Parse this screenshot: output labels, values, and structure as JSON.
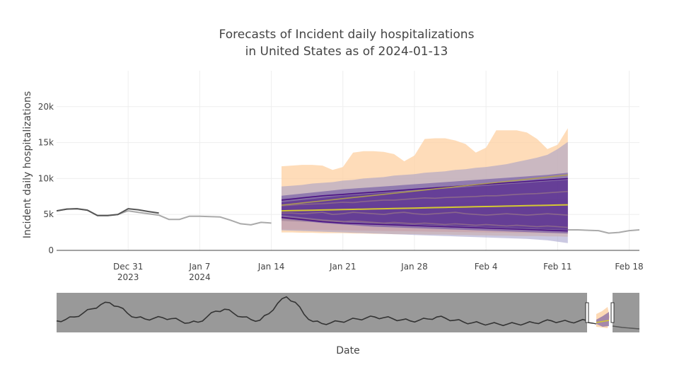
{
  "chart_data": {
    "type": "line",
    "title_line1": "Forecasts of Incident daily hospitalizations",
    "title_line2": "in United States as of 2024-01-13",
    "xlabel": "Date",
    "ylabel": "Incident daily hospitalizations",
    "xlim": [
      "2023-12-24",
      "2024-02-19"
    ],
    "ylim": [
      0,
      25000
    ],
    "grid": true,
    "legend": "none",
    "x_ticks": [
      {
        "date": "2023-12-31",
        "line1": "Dec 31",
        "line2": "2023"
      },
      {
        "date": "2024-01-07",
        "line1": "Jan 7",
        "line2": "2024"
      },
      {
        "date": "2024-01-14",
        "line1": "Jan 14",
        "line2": ""
      },
      {
        "date": "2024-01-21",
        "line1": "Jan 21",
        "line2": ""
      },
      {
        "date": "2024-01-28",
        "line1": "Jan 28",
        "line2": ""
      },
      {
        "date": "2024-02-04",
        "line1": "Feb 4",
        "line2": ""
      },
      {
        "date": "2024-02-11",
        "line1": "Feb 11",
        "line2": ""
      },
      {
        "date": "2024-02-18",
        "line1": "Feb 18",
        "line2": ""
      }
    ],
    "y_ticks": [
      {
        "value": 0,
        "label": "0"
      },
      {
        "value": 5000,
        "label": "5k"
      },
      {
        "value": 10000,
        "label": "10k"
      },
      {
        "value": 15000,
        "label": "15k"
      },
      {
        "value": 20000,
        "label": "20k"
      }
    ],
    "observed_as_of": {
      "color": "#555555",
      "points": [
        [
          "2023-12-24",
          5500
        ],
        [
          "2023-12-25",
          5750
        ],
        [
          "2023-12-26",
          5800
        ],
        [
          "2023-12-27",
          5600
        ],
        [
          "2023-12-28",
          4850
        ],
        [
          "2023-12-29",
          4850
        ],
        [
          "2023-12-30",
          5000
        ],
        [
          "2023-12-31",
          5800
        ],
        [
          "2024-01-01",
          5650
        ],
        [
          "2024-01-02",
          5400
        ],
        [
          "2024-01-03",
          5200
        ]
      ]
    },
    "observed_latest": {
      "color": "#aaaaaa",
      "points": [
        [
          "2023-12-24",
          5500
        ],
        [
          "2023-12-25",
          5750
        ],
        [
          "2023-12-26",
          5800
        ],
        [
          "2023-12-27",
          5600
        ],
        [
          "2023-12-28",
          4850
        ],
        [
          "2023-12-29",
          4850
        ],
        [
          "2023-12-30",
          5000
        ],
        [
          "2023-12-31",
          5500
        ],
        [
          "2024-01-01",
          5300
        ],
        [
          "2024-01-02",
          5100
        ],
        [
          "2024-01-03",
          4900
        ],
        [
          "2024-01-04",
          4300
        ],
        [
          "2024-01-05",
          4300
        ],
        [
          "2024-01-06",
          4750
        ],
        [
          "2024-01-07",
          4750
        ],
        [
          "2024-01-08",
          4700
        ],
        [
          "2024-01-09",
          4650
        ],
        [
          "2024-01-10",
          4200
        ],
        [
          "2024-01-11",
          3700
        ],
        [
          "2024-01-12",
          3550
        ],
        [
          "2024-01-13",
          3900
        ],
        [
          "2024-01-14",
          3800
        ],
        [
          "2024-02-11",
          3300
        ],
        [
          "2024-02-12",
          2850
        ],
        [
          "2024-02-13",
          2850
        ],
        [
          "2024-02-14",
          2800
        ],
        [
          "2024-02-15",
          2750
        ],
        [
          "2024-02-16",
          2400
        ],
        [
          "2024-02-17",
          2500
        ],
        [
          "2024-02-18",
          2750
        ],
        [
          "2024-02-19",
          2850
        ]
      ]
    },
    "forecast_dates": [
      "2024-01-15",
      "2024-01-16",
      "2024-01-17",
      "2024-01-18",
      "2024-01-19",
      "2024-01-20",
      "2024-01-21",
      "2024-01-22",
      "2024-01-23",
      "2024-01-24",
      "2024-01-25",
      "2024-01-26",
      "2024-01-27",
      "2024-01-28",
      "2024-01-29",
      "2024-01-30",
      "2024-01-31",
      "2024-02-01",
      "2024-02-02",
      "2024-02-03",
      "2024-02-04",
      "2024-02-05",
      "2024-02-06",
      "2024-02-07",
      "2024-02-08",
      "2024-02-09",
      "2024-02-10",
      "2024-02-11",
      "2024-02-12"
    ],
    "bands": [
      {
        "color": "#fdd0a2",
        "opacity": 0.75,
        "upper": [
          11700,
          11800,
          11900,
          11900,
          11800,
          11200,
          11600,
          13600,
          13800,
          13800,
          13700,
          13400,
          12400,
          13200,
          15500,
          15600,
          15600,
          15300,
          14800,
          13600,
          14300,
          16700,
          16700,
          16700,
          16400,
          15500,
          14100,
          14700,
          17000
        ],
        "lower": [
          2500,
          2500,
          2450,
          2450,
          2400,
          2400,
          2400,
          2350,
          2350,
          2300,
          2300,
          2250,
          2250,
          2250,
          2200,
          2200,
          2200,
          2150,
          2150,
          2100,
          2100,
          2050,
          2050,
          2000,
          2000,
          2000,
          1950,
          1950,
          1900
        ]
      },
      {
        "color": "#fc9272",
        "opacity": 0.45,
        "upper": [
          5800,
          5850,
          5900,
          5950,
          6000,
          6050,
          6100,
          6150,
          6200,
          6250,
          6300,
          6350,
          6400,
          6450,
          6500,
          6550,
          6600,
          6650,
          6700,
          6750,
          6800,
          6850,
          6900,
          6950,
          7000,
          7050,
          7100,
          7150,
          7200
        ],
        "lower": [
          2900,
          2880,
          2860,
          2840,
          2820,
          2800,
          2780,
          2760,
          2740,
          2720,
          2700,
          2680,
          2660,
          2640,
          2620,
          2600,
          2580,
          2560,
          2540,
          2520,
          2500,
          2480,
          2460,
          2440,
          2420,
          2400,
          2380,
          2360,
          2340
        ]
      },
      {
        "color": "#9e9ac8",
        "opacity": 0.55,
        "upper": [
          8900,
          9000,
          9100,
          9300,
          9400,
          9500,
          9700,
          9800,
          10000,
          10100,
          10200,
          10400,
          10500,
          10600,
          10800,
          10900,
          11000,
          11200,
          11300,
          11500,
          11600,
          11800,
          12000,
          12300,
          12600,
          12900,
          13300,
          14100,
          15100
        ],
        "lower": [
          2800,
          2750,
          2700,
          2650,
          2600,
          2550,
          2500,
          2450,
          2400,
          2350,
          2300,
          2250,
          2200,
          2150,
          2100,
          2050,
          2000,
          1950,
          1900,
          1850,
          1800,
          1750,
          1700,
          1650,
          1600,
          1500,
          1400,
          1200,
          1000
        ]
      },
      {
        "color": "#8c6d8c",
        "opacity": 0.45,
        "upper": [
          7200,
          7300,
          7400,
          7500,
          7600,
          7700,
          7800,
          7900,
          8000,
          8100,
          8200,
          8300,
          8400,
          8500,
          8600,
          8700,
          8800,
          8900,
          9000,
          9100,
          9200,
          9300,
          9400,
          9500,
          9600,
          9700,
          9800,
          9900,
          10000
        ],
        "lower": [
          4100,
          4050,
          4000,
          3950,
          3900,
          3850,
          3800,
          3750,
          3700,
          3650,
          3600,
          3550,
          3500,
          3450,
          3400,
          3350,
          3300,
          3250,
          3200,
          3150,
          3100,
          3050,
          3000,
          2950,
          2900,
          2850,
          2800,
          2750,
          2700
        ]
      },
      {
        "color": "#6a51a3",
        "opacity": 0.6,
        "upper": [
          7600,
          7750,
          7900,
          8050,
          8200,
          8350,
          8500,
          8600,
          8700,
          8800,
          8900,
          9000,
          9100,
          9200,
          9300,
          9400,
          9500,
          9600,
          9700,
          9800,
          9900,
          10000,
          10100,
          10200,
          10300,
          10400,
          10500,
          10650,
          10800
        ],
        "lower": [
          4400,
          4250,
          4100,
          3950,
          3800,
          3700,
          3600,
          3500,
          3400,
          3300,
          3250,
          3200,
          3150,
          3100,
          3050,
          3000,
          2950,
          2900,
          2850,
          2800,
          2750,
          2700,
          2650,
          2600,
          2550,
          2500,
          2450,
          2400,
          2350
        ]
      },
      {
        "color": "#54278f",
        "opacity": 0.65,
        "upper": [
          6700,
          6850,
          7000,
          7150,
          7300,
          7450,
          7600,
          7700,
          7800,
          7900,
          8000,
          8100,
          8200,
          8300,
          8400,
          8500,
          8600,
          8700,
          8800,
          8900,
          9000,
          9100,
          9200,
          9300,
          9400,
          9500,
          9600,
          9700,
          9800
        ],
        "lower": [
          4900,
          4750,
          4600,
          4450,
          4300,
          4200,
          4100,
          4000,
          3900,
          3800,
          3750,
          3700,
          3650,
          3600,
          3550,
          3500,
          3450,
          3400,
          3350,
          3300,
          3250,
          3200,
          3150,
          3100,
          3050,
          3000,
          2950,
          2900,
          2850
        ]
      }
    ],
    "median_lines": [
      {
        "color": "#8e6c8a",
        "opacity": 0.9,
        "values": [
          6200,
          6300,
          6400,
          6450,
          6500,
          6600,
          6700,
          6650,
          6800,
          6900,
          7000,
          7000,
          7100,
          7200,
          7300,
          7250,
          7350,
          7400,
          7450,
          7500,
          7600,
          7600,
          7700,
          7800,
          7850,
          7900,
          8000,
          8100,
          8200
        ]
      },
      {
        "color": "#8e6c8a",
        "opacity": 0.9,
        "values": [
          5200,
          5200,
          5100,
          5200,
          5300,
          5000,
          5100,
          5300,
          5200,
          5100,
          5000,
          5200,
          5300,
          5100,
          5000,
          5100,
          5200,
          5300,
          5100,
          5000,
          4900,
          5000,
          5100,
          5000,
          4900,
          5000,
          5100,
          5000,
          4900
        ]
      },
      {
        "color": "#8e6c8a",
        "opacity": 0.9,
        "values": [
          4600,
          4500,
          4400,
          4300,
          4200,
          4100,
          4000,
          4100,
          4000,
          3900,
          3800,
          3900,
          3800,
          3700,
          3800,
          3700,
          3600,
          3700,
          3600,
          3500,
          3600,
          3500,
          3400,
          3500,
          3400,
          3300,
          3400,
          3300,
          3200
        ]
      },
      {
        "color": "#3f007d",
        "opacity": 0.85,
        "values": [
          7000,
          7150,
          7300,
          7450,
          7600,
          7700,
          7800,
          7900,
          8000,
          8100,
          8200,
          8300,
          8400,
          8500,
          8600,
          8700,
          8800,
          8900,
          9000,
          9100,
          9200,
          9300,
          9400,
          9500,
          9600,
          9700,
          9800,
          9900,
          10000
        ]
      },
      {
        "color": "#3f007d",
        "opacity": 0.85,
        "values": [
          4600,
          4450,
          4300,
          4150,
          4000,
          3900,
          3800,
          3750,
          3700,
          3650,
          3600,
          3550,
          3500,
          3450,
          3400,
          3350,
          3300,
          3250,
          3200,
          3150,
          3100,
          3050,
          3000,
          2950,
          2900,
          2850,
          2800,
          2750,
          2700
        ]
      },
      {
        "color": "#b2a24e",
        "opacity": 0.9,
        "values": [
          6300,
          6450,
          6600,
          6750,
          6900,
          7050,
          7200,
          7350,
          7500,
          7650,
          7800,
          7950,
          8100,
          8250,
          8400,
          8550,
          8700,
          8850,
          9000,
          9150,
          9300,
          9450,
          9600,
          9750,
          9900,
          10050,
          10200,
          10350,
          10500
        ]
      },
      {
        "color": "#d4c832",
        "opacity": 1,
        "values": [
          5500,
          5530,
          5560,
          5590,
          5620,
          5650,
          5680,
          5710,
          5740,
          5770,
          5800,
          5830,
          5860,
          5890,
          5920,
          5950,
          5980,
          6010,
          6040,
          6070,
          6100,
          6130,
          6160,
          6190,
          6220,
          6250,
          6280,
          6310,
          6340
        ]
      }
    ],
    "range_slider": {
      "bgcolor": "#999999",
      "window_color": "#ffffff",
      "line_color": "#333333",
      "history_shape": [
        0.18,
        0.22,
        0.3,
        0.42,
        0.55,
        0.68,
        0.74,
        0.62,
        0.42,
        0.28,
        0.24,
        0.26,
        0.28,
        0.25,
        0.18,
        0.12,
        0.14,
        0.3,
        0.48,
        0.54,
        0.42,
        0.3,
        0.22,
        0.2,
        0.4,
        0.72,
        0.92,
        0.75,
        0.38,
        0.16,
        0.1,
        0.12,
        0.16,
        0.2,
        0.24,
        0.27,
        0.3,
        0.28,
        0.25,
        0.21,
        0.18,
        0.2,
        0.24,
        0.3,
        0.26,
        0.2,
        0.15,
        0.12,
        0.1,
        0.09,
        0.08,
        0.08,
        0.09,
        0.1,
        0.12,
        0.16,
        0.18,
        0.16,
        0.15,
        0.17,
        0.19
      ]
    }
  }
}
